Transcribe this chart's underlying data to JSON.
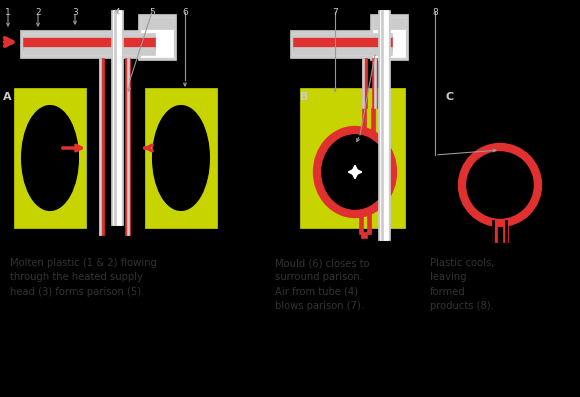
{
  "bg_color": "#000000",
  "yellow": "#c8d400",
  "red": "#e03030",
  "white": "#ffffff",
  "light_gray": "#cccccc",
  "mid_gray": "#999999",
  "dark_gray": "#555555",
  "text_color": "#333333",
  "label_A": "A",
  "label_B": "B",
  "label_C": "C",
  "caption_A": "Molten plastic (1 & 2) flowing\nthrough the heated supply\nhead (3) forms parison (5).",
  "caption_B": "Mould (6) closes to\nsurround parison.\nAir from tube (4)\nblows parison (7).",
  "caption_C": "Plastic cools,\nleaving\nformed\nproducts (8).",
  "num_labels": [
    "1",
    "2",
    "3",
    "4",
    "5",
    "6",
    "7",
    "8"
  ],
  "num_x": [
    8,
    38,
    75,
    117,
    152,
    185,
    335,
    435
  ],
  "num_y": [
    8,
    8,
    8,
    8,
    8,
    8,
    8,
    8
  ]
}
